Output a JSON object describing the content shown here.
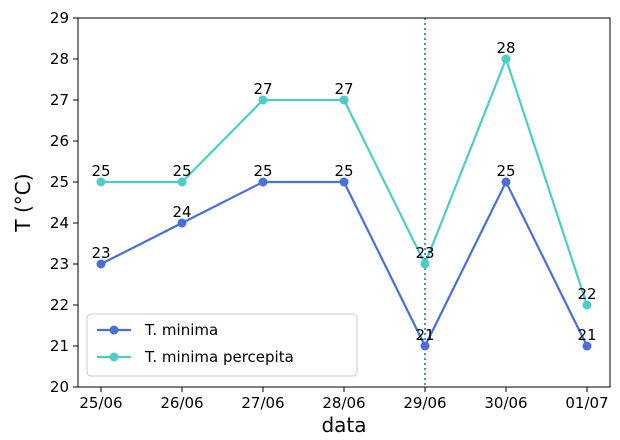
{
  "chart_data": {
    "type": "line",
    "title": "",
    "xlabel": "data",
    "ylabel": "T (°C)",
    "categories": [
      "25/06",
      "26/06",
      "27/06",
      "28/06",
      "29/06",
      "30/06",
      "01/07"
    ],
    "ylim": [
      20,
      29
    ],
    "yticks": [
      20,
      21,
      22,
      23,
      24,
      25,
      26,
      27,
      28,
      29
    ],
    "grid": false,
    "legend_position": "lower-left",
    "vertical_marker": {
      "category": "29/06",
      "style": "dotted",
      "color": "#1f77b4"
    },
    "series": [
      {
        "name": "T. minima",
        "color": "#4a6fd6",
        "values": [
          23,
          24,
          25,
          25,
          21,
          25,
          21
        ]
      },
      {
        "name": "T. minima percepita",
        "color": "#4ecdc8",
        "values": [
          25,
          25,
          27,
          27,
          23,
          28,
          22
        ]
      }
    ]
  }
}
